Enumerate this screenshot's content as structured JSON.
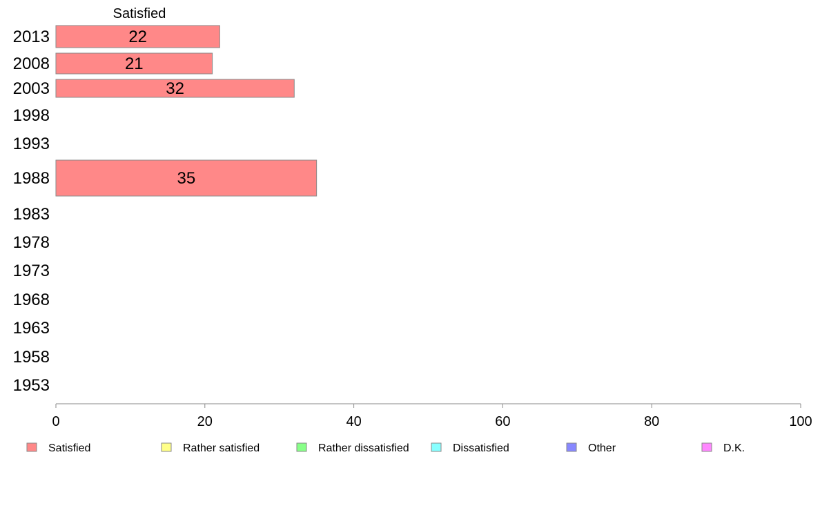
{
  "chart_data": {
    "type": "bar",
    "orientation": "horizontal",
    "header": "Satisfied",
    "categories": [
      "2013",
      "2008",
      "2003",
      "1998",
      "1993",
      "1988",
      "1983",
      "1978",
      "1973",
      "1968",
      "1963",
      "1958",
      "1953"
    ],
    "series": [
      {
        "name": "Satisfied",
        "color": "#ff8888",
        "values": [
          22,
          21,
          32,
          null,
          null,
          35,
          null,
          null,
          null,
          null,
          null,
          null,
          null
        ],
        "labels": [
          "22",
          "21",
          "32",
          "",
          "",
          "35",
          "",
          "",
          "",
          "",
          "",
          "",
          ""
        ]
      }
    ],
    "legend": [
      {
        "name": "Satisfied",
        "color": "#ff8888"
      },
      {
        "name": "Rather satisfied",
        "color": "#ffff88"
      },
      {
        "name": "Rather dissatisfied",
        "color": "#88ff88"
      },
      {
        "name": "Dissatisfied",
        "color": "#88ffff"
      },
      {
        "name": "Other",
        "color": "#8888ff"
      },
      {
        "name": "D.K.",
        "color": "#ff88ff"
      }
    ],
    "xlim": [
      0,
      100
    ],
    "xticks": [
      "0",
      "20",
      "40",
      "60",
      "80",
      "100"
    ],
    "legend_position": "bottom",
    "grid": false
  }
}
